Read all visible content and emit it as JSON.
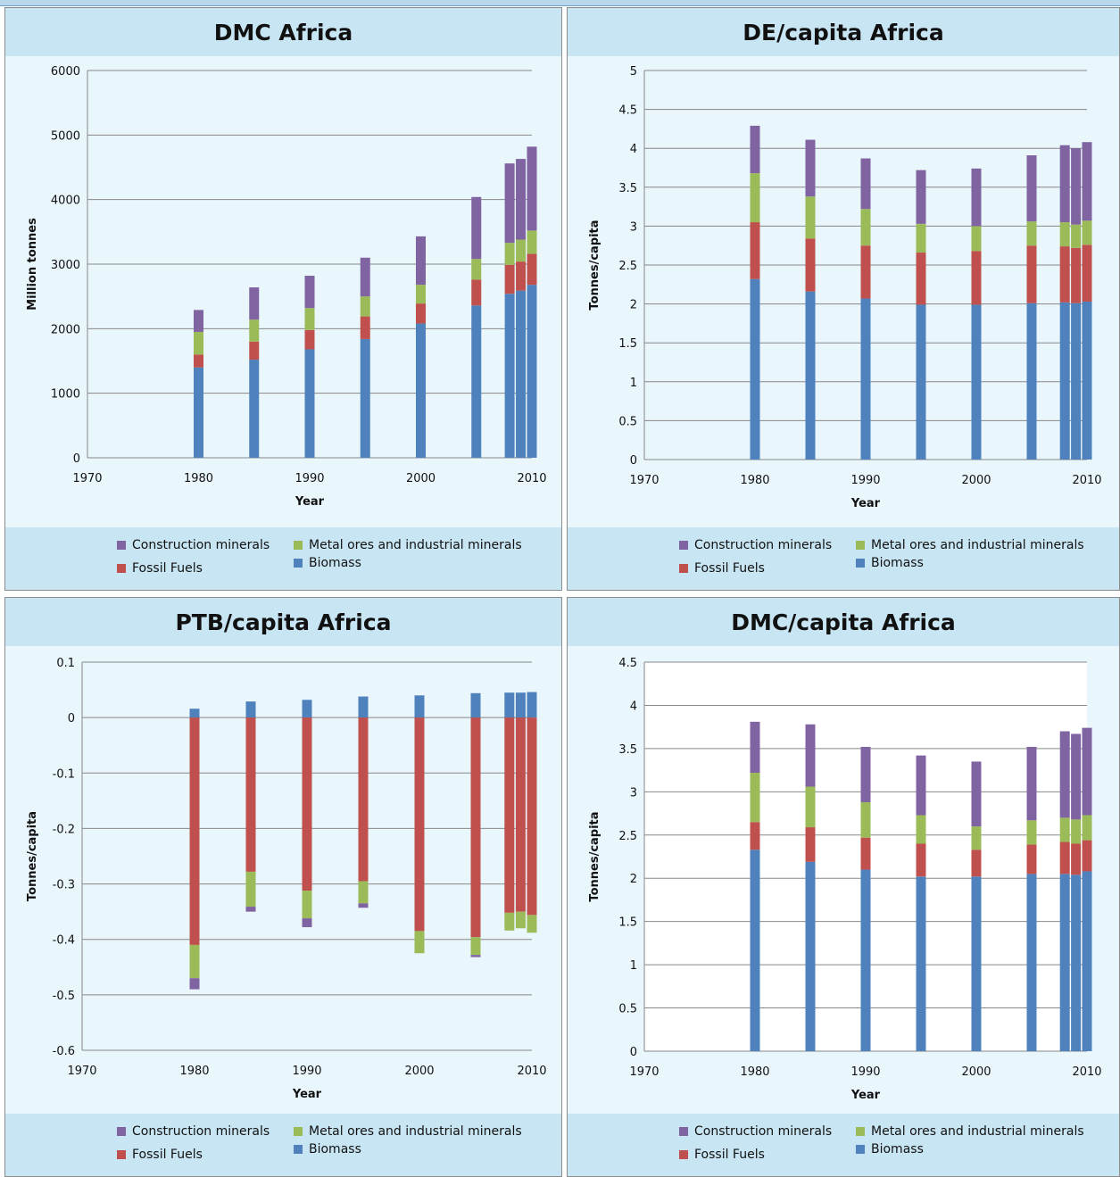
{
  "legend": {
    "construction": "Construction minerals",
    "metal": "Metal ores and industrial minerals",
    "fossil": "Fossil Fuels",
    "biomass": "Biomass"
  },
  "colors": {
    "construction": "#8064a2",
    "metal": "#9bbb59",
    "fossil": "#c0504d",
    "biomass": "#4f81bd",
    "grid": "#888888"
  },
  "chart_data": [
    {
      "type": "bar",
      "stacked": true,
      "title": "DMC Africa",
      "xlabel": "Year",
      "ylabel": "Million tonnes",
      "xlim": [
        1970,
        2010
      ],
      "xticks": [
        1970,
        1980,
        1990,
        2000,
        2010
      ],
      "ylim": [
        0,
        6000
      ],
      "yticks": [
        0,
        1000,
        2000,
        3000,
        4000,
        5000,
        6000
      ],
      "ytick_labels": [
        "0",
        "1000",
        "2000",
        "3000",
        "4000",
        "5000",
        "6000"
      ],
      "plot_background": "light-blue",
      "x": [
        1980,
        1985,
        1990,
        1995,
        2000,
        2005,
        2008,
        2009,
        2010
      ],
      "series": [
        {
          "name": "Biomass",
          "key": "biomass",
          "values": [
            1400,
            1520,
            1680,
            1840,
            2080,
            2360,
            2540,
            2590,
            2680
          ]
        },
        {
          "name": "Fossil Fuels",
          "key": "fossil",
          "values": [
            200,
            280,
            300,
            350,
            310,
            400,
            450,
            450,
            480
          ]
        },
        {
          "name": "Metal ores and industrial minerals",
          "key": "metal",
          "values": [
            350,
            340,
            340,
            310,
            290,
            320,
            340,
            340,
            360
          ]
        },
        {
          "name": "Construction minerals",
          "key": "construction",
          "values": [
            340,
            500,
            500,
            600,
            750,
            960,
            1230,
            1250,
            1300
          ]
        }
      ]
    },
    {
      "type": "bar",
      "stacked": true,
      "title": "DE/capita Africa",
      "xlabel": "Year",
      "ylabel": "Tonnes/capita",
      "xlim": [
        1970,
        2010
      ],
      "xticks": [
        1970,
        1980,
        1990,
        2000,
        2010
      ],
      "ylim": [
        0,
        5
      ],
      "yticks": [
        0,
        0.5,
        1,
        1.5,
        2,
        2.5,
        3,
        3.5,
        4,
        4.5,
        5
      ],
      "ytick_labels": [
        "0",
        "0.5",
        "1",
        "1.5",
        "2",
        "2.5",
        "3",
        "3.5",
        "4",
        "4.5",
        "5"
      ],
      "plot_background": "light-blue",
      "x": [
        1980,
        1985,
        1990,
        1995,
        2000,
        2005,
        2008,
        2009,
        2010
      ],
      "series": [
        {
          "name": "Biomass",
          "key": "biomass",
          "values": [
            2.32,
            2.16,
            2.07,
            1.99,
            1.99,
            2.01,
            2.02,
            2.01,
            2.03
          ]
        },
        {
          "name": "Fossil Fuels",
          "key": "fossil",
          "values": [
            0.73,
            0.68,
            0.68,
            0.67,
            0.69,
            0.74,
            0.72,
            0.71,
            0.73
          ]
        },
        {
          "name": "Metal ores and industrial minerals",
          "key": "metal",
          "values": [
            0.63,
            0.54,
            0.47,
            0.37,
            0.32,
            0.31,
            0.31,
            0.3,
            0.31
          ]
        },
        {
          "name": "Construction minerals",
          "key": "construction",
          "values": [
            0.61,
            0.73,
            0.65,
            0.69,
            0.74,
            0.85,
            0.99,
            0.98,
            1.01
          ]
        }
      ]
    },
    {
      "type": "bar",
      "stacked": true,
      "title": "PTB/capita Africa",
      "xlabel": "Year",
      "ylabel": "Tonnes/capita",
      "xlim": [
        1970,
        2010
      ],
      "xticks": [
        1970,
        1980,
        1990,
        2000,
        2010
      ],
      "ylim": [
        -0.6,
        0.1
      ],
      "yticks": [
        -0.6,
        -0.5,
        -0.4,
        -0.3,
        -0.2,
        -0.1,
        0,
        0.1
      ],
      "ytick_labels": [
        "-0.6",
        "-0.5",
        "-0.4",
        "-0.3",
        "-0.2",
        "-0.1",
        "0",
        "0.1"
      ],
      "plot_background": "light-blue",
      "x": [
        1980,
        1985,
        1990,
        1995,
        2000,
        2005,
        2008,
        2009,
        2010
      ],
      "series": [
        {
          "name": "Biomass",
          "key": "biomass",
          "values": [
            0.016,
            0.029,
            0.032,
            0.038,
            0.04,
            0.044,
            0.045,
            0.045,
            0.046
          ]
        },
        {
          "name": "Fossil Fuels",
          "key": "fossil",
          "values": [
            -0.41,
            -0.278,
            -0.312,
            -0.295,
            -0.385,
            -0.396,
            -0.352,
            -0.35,
            -0.356
          ]
        },
        {
          "name": "Metal ores and industrial minerals",
          "key": "metal",
          "values": [
            -0.06,
            -0.063,
            -0.05,
            -0.04,
            -0.04,
            -0.032,
            -0.032,
            -0.03,
            -0.032
          ]
        },
        {
          "name": "Construction minerals",
          "key": "construction",
          "values": [
            -0.02,
            -0.009,
            -0.016,
            -0.008,
            0,
            -0.004,
            0,
            0,
            0
          ]
        }
      ]
    },
    {
      "type": "bar",
      "stacked": true,
      "title": "DMC/capita Africa",
      "xlabel": "Year",
      "ylabel": "Tonnes/capita",
      "xlim": [
        1970,
        2010
      ],
      "xticks": [
        1970,
        1980,
        1990,
        2000,
        2010
      ],
      "ylim": [
        0,
        4.5
      ],
      "yticks": [
        0,
        0.5,
        1,
        1.5,
        2,
        2.5,
        3,
        3.5,
        4,
        4.5
      ],
      "ytick_labels": [
        "0",
        "0.5",
        "1",
        "1.5",
        "2",
        "2.5",
        "3",
        "3.5",
        "4",
        "4.5"
      ],
      "plot_background": "white",
      "x": [
        1980,
        1985,
        1990,
        1995,
        2000,
        2005,
        2008,
        2009,
        2010
      ],
      "series": [
        {
          "name": "Biomass",
          "key": "biomass",
          "values": [
            2.33,
            2.19,
            2.1,
            2.02,
            2.02,
            2.05,
            2.05,
            2.04,
            2.08
          ]
        },
        {
          "name": "Fossil Fuels",
          "key": "fossil",
          "values": [
            0.32,
            0.4,
            0.37,
            0.38,
            0.31,
            0.34,
            0.37,
            0.36,
            0.36
          ]
        },
        {
          "name": "Metal ores and industrial minerals",
          "key": "metal",
          "values": [
            0.57,
            0.47,
            0.41,
            0.33,
            0.27,
            0.28,
            0.28,
            0.28,
            0.29
          ]
        },
        {
          "name": "Construction minerals",
          "key": "construction",
          "values": [
            0.59,
            0.72,
            0.64,
            0.69,
            0.75,
            0.85,
            1,
            0.99,
            1.01
          ]
        }
      ]
    }
  ]
}
